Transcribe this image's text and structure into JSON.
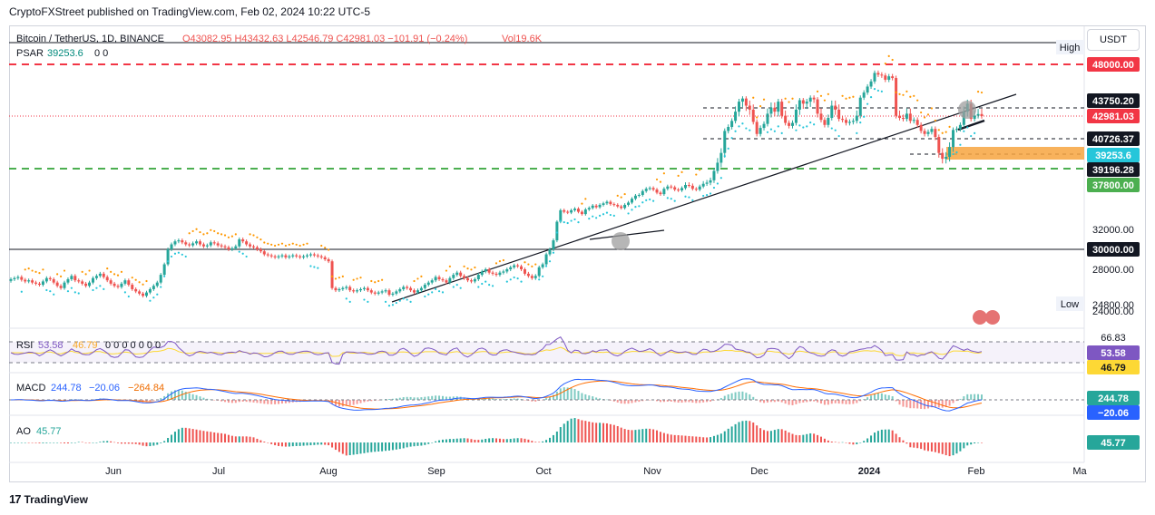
{
  "header": {
    "publisher": "CryptoFXStreet published on TradingView.com, Feb 02, 2024 10:22 UTC-5"
  },
  "currency": "USDT",
  "footer": {
    "brand": "TradingView",
    "logo": "17"
  },
  "legend": {
    "symbol": "Bitcoin / TetherUS, 1D, BINANCE",
    "ohlc": "O43082.95 H43432.63 L42546.79 C42981.03 −101.91 (−0.24%)",
    "vol": "Vol19.6K",
    "psar": "PSAR",
    "psar_val": "39253.6",
    "psar_tail": "0 0",
    "rsi": "RSI",
    "rsi_a": "53.58",
    "rsi_b": "46.79",
    "rsi_tail": "0 0 0 0 0 0 0",
    "macd": "MACD",
    "macd_a": "244.78",
    "macd_b": "−20.06",
    "macd_c": "−264.84",
    "ao": "AO",
    "ao_val": "45.77"
  },
  "colors": {
    "bull": "#26a69a",
    "bear": "#ef5350",
    "red_level": "#f23645",
    "green_level": "#4caf50",
    "psar_up": "#26c6da",
    "psar_down": "#ff9800",
    "rsi": "#7e57c2",
    "rsi_ma": "#fdd835",
    "macd": "#2962ff",
    "signal": "#ff6d00",
    "zone": "#f7a540"
  },
  "chart_data": [
    {
      "type": "line",
      "title": "Bitcoin / TetherUS, 1D, BINANCE",
      "x": [
        "Jun",
        "Jul",
        "Aug",
        "Sep",
        "Oct",
        "Nov",
        "Dec",
        "2024",
        "Feb",
        "Ma"
      ],
      "yticks": [
        24000,
        28000,
        30000,
        32000,
        37800,
        39196.28,
        40726.37,
        43750.2,
        48000
      ],
      "price_labels": [
        {
          "label": "High",
          "value": "48970"
        },
        {
          "label": "48000.00",
          "value": "48000"
        },
        {
          "label": "43750.20",
          "value": "43750.20"
        },
        {
          "label": "42981.03",
          "value": "42981.03"
        },
        {
          "label": "40726.37",
          "value": "40726.37"
        },
        {
          "label": "39253.6",
          "value": "39253.6"
        },
        {
          "label": "39196.28",
          "value": "39196.28"
        },
        {
          "label": "37800.00",
          "value": "37800"
        },
        {
          "label": "32000.00",
          "value": "32000"
        },
        {
          "label": "30000.00",
          "value": "30000"
        },
        {
          "label": "28000.00",
          "value": "28000"
        },
        {
          "label": "24800.00",
          "value": "24800"
        },
        {
          "label": "Low",
          "value": "24800"
        },
        {
          "label": "24000.00",
          "value": "24000"
        }
      ],
      "closes": [
        27100,
        27200,
        27300,
        27050,
        26900,
        27000,
        26800,
        26700,
        26600,
        26900,
        27200,
        27100,
        26800,
        26500,
        26300,
        26800,
        27100,
        27400,
        27000,
        26900,
        26700,
        26500,
        26800,
        27200,
        27400,
        27600,
        27300,
        27000,
        26700,
        26500,
        26400,
        26700,
        27000,
        26600,
        26200,
        26000,
        25800,
        25600,
        25900,
        26200,
        26500,
        26800,
        27500,
        28500,
        30000,
        30500,
        30800,
        30900,
        30700,
        30500,
        30400,
        30600,
        30800,
        30500,
        30300,
        30400,
        30700,
        30600,
        30400,
        30300,
        30200,
        30000,
        30100,
        30300,
        31000,
        30800,
        30500,
        30300,
        30200,
        30000,
        29800,
        29500,
        29400,
        29300,
        29200,
        29300,
        29400,
        29200,
        29300,
        29400,
        29300,
        29200,
        29300,
        29400,
        29500,
        29400,
        29300,
        29200,
        29000,
        28800,
        26300,
        26100,
        26200,
        26300,
        26400,
        26100,
        26000,
        26100,
        26200,
        26300,
        26100,
        25900,
        25800,
        25900,
        26000,
        26100,
        25700,
        25800,
        26000,
        26200,
        26400,
        26300,
        26100,
        25900,
        26100,
        26300,
        26600,
        26800,
        27000,
        27300,
        27100,
        27000,
        26800,
        27200,
        27500,
        27700,
        27400,
        27200,
        27000,
        26900,
        27100,
        27500,
        27800,
        28000,
        27700,
        27600,
        27500,
        27700,
        27800,
        28000,
        28200,
        28400,
        28300,
        28000,
        27600,
        27400,
        27200,
        27400,
        28200,
        28500,
        29500,
        30000,
        30900,
        33000,
        34500,
        34300,
        34200,
        34500,
        34700,
        34300,
        34000,
        34600,
        34800,
        35100,
        34900,
        35200,
        35400,
        35600,
        35300,
        35200,
        35000,
        34800,
        35200,
        35500,
        36000,
        36400,
        36500,
        37000,
        37300,
        37400,
        37200,
        36800,
        36600,
        37300,
        37600,
        37500,
        37200,
        37100,
        37400,
        37800,
        37700,
        37300,
        37200,
        37600,
        37900,
        38000,
        38200,
        39000,
        39500,
        40000,
        41500,
        41900,
        42500,
        43200,
        43700,
        44000,
        43500,
        43300,
        42400,
        41200,
        41800,
        42200,
        43100,
        43400,
        43200,
        43700,
        43000,
        42300,
        42000,
        42300,
        43300,
        43800,
        43600,
        43700,
        44100,
        43900,
        43100,
        42600,
        42100,
        42800,
        43500,
        43300,
        42700,
        42600,
        42300,
        42400,
        42500,
        43000,
        44100,
        44700,
        45400,
        46000,
        47000,
        46800,
        46700,
        46200,
        46600,
        46400,
        43000,
        42800,
        42700,
        43100,
        42500,
        42600,
        42100,
        41500,
        41200,
        41400,
        41700,
        40900,
        40000,
        39700,
        39800,
        40300,
        41600,
        41700,
        42100,
        43200,
        43600,
        42700,
        43000,
        43080,
        42981
      ]
    },
    {
      "type": "line",
      "title": "RSI",
      "series": [
        {
          "name": "RSI",
          "values": [
            53.58
          ]
        },
        {
          "name": "RSI MA",
          "values": [
            46.79
          ]
        }
      ],
      "yticks": [
        66.83
      ]
    },
    {
      "type": "line",
      "title": "MACD",
      "series": [
        {
          "name": "MACD",
          "values": [
            244.78
          ]
        },
        {
          "name": "Signal",
          "values": [
            -20.06
          ]
        },
        {
          "name": "Histogram",
          "values": [
            -264.84
          ]
        }
      ]
    },
    {
      "type": "bar",
      "title": "AO",
      "values": [
        45.77
      ]
    }
  ]
}
